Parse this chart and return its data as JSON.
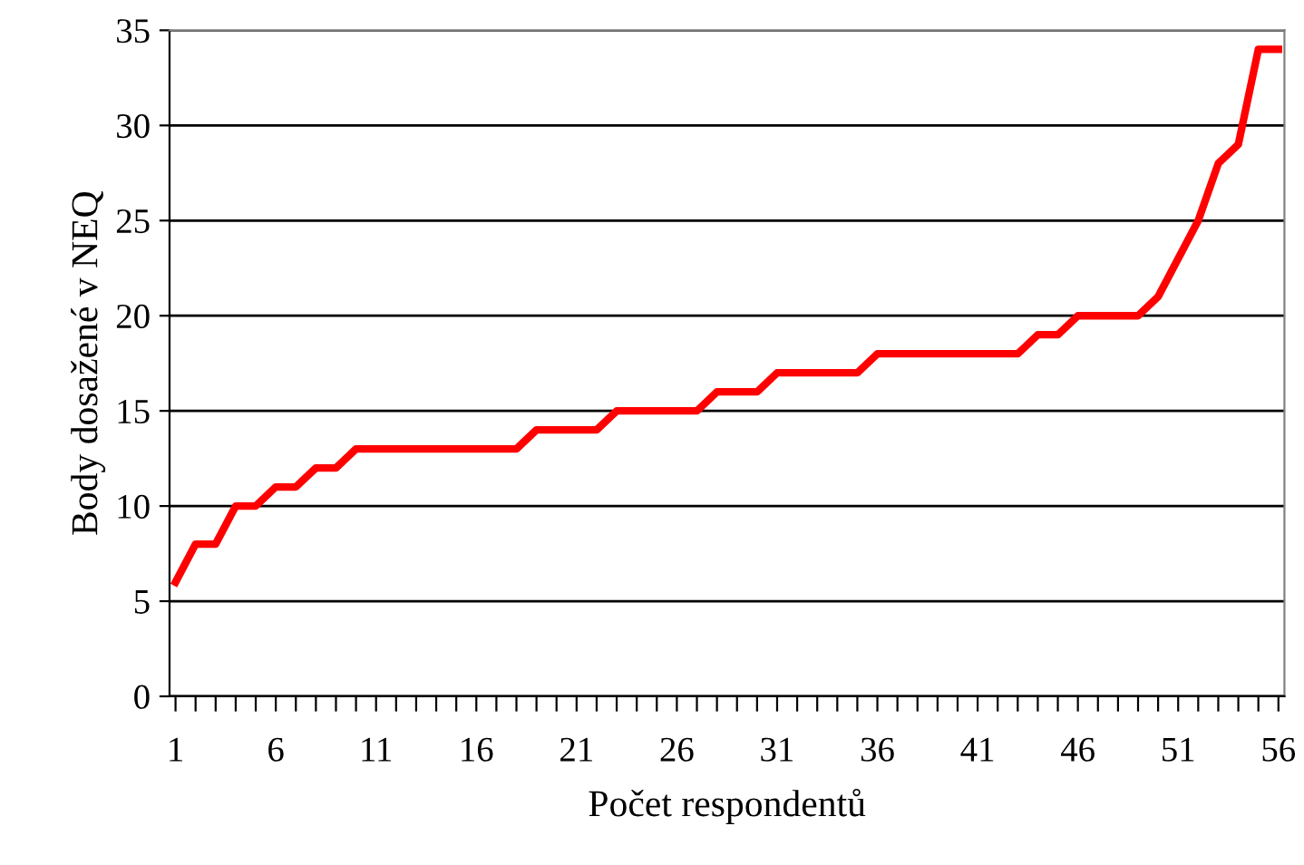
{
  "chart_data": {
    "type": "line",
    "xlabel": "Počet respondentů",
    "ylabel": "Body dosažené v NEQ",
    "categories": [
      "1",
      null,
      null,
      null,
      null,
      "6",
      null,
      null,
      null,
      null,
      "11",
      null,
      null,
      null,
      null,
      "16",
      null,
      null,
      null,
      null,
      "21",
      null,
      null,
      null,
      null,
      "26",
      null,
      null,
      null,
      null,
      "31",
      null,
      null,
      null,
      null,
      "36",
      null,
      null,
      null,
      null,
      "41",
      null,
      null,
      null,
      null,
      "46",
      null,
      null,
      null,
      null,
      "51",
      null,
      null,
      null,
      null,
      "56"
    ],
    "series": [
      {
        "color": "#ff0000",
        "values": [
          6,
          8,
          8,
          10,
          10,
          11,
          11,
          12,
          12,
          13,
          13,
          13,
          13,
          13,
          13,
          13,
          13,
          13,
          14,
          14,
          14,
          14,
          15,
          15,
          15,
          15,
          15,
          16,
          16,
          16,
          17,
          17,
          17,
          17,
          17,
          18,
          18,
          18,
          18,
          18,
          18,
          18,
          18,
          19,
          19,
          20,
          20,
          20,
          20,
          21,
          23,
          25,
          28,
          29,
          34,
          34
        ]
      }
    ],
    "ylim": [
      0,
      35
    ],
    "yticks": [
      0,
      5,
      10,
      15,
      20,
      25,
      30,
      35
    ],
    "grid": "y",
    "legend": false,
    "marker": "none",
    "line_style": "solid"
  }
}
